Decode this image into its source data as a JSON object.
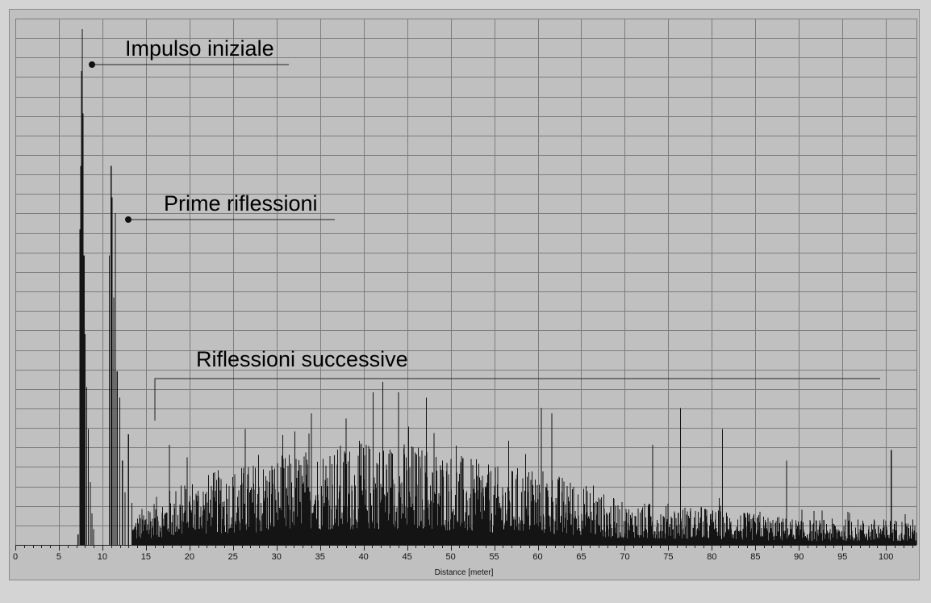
{
  "chart_data": {
    "type": "bar",
    "title": "",
    "xlabel": "Distance [meter]",
    "ylabel": "",
    "xlim": [
      0,
      103.5
    ],
    "ylim": [
      0,
      1
    ],
    "grid": true,
    "x_ticks": [
      0,
      5,
      10,
      15,
      20,
      25,
      30,
      35,
      40,
      45,
      50,
      55,
      60,
      65,
      70,
      75,
      80,
      85,
      90,
      95,
      100
    ],
    "annotations": [
      {
        "text": "Impulso iniziale",
        "x": 8.6
      },
      {
        "text": "Prime riflessioni",
        "x": 12.8
      },
      {
        "text": "Riflessioni successive",
        "x_start": 15.8,
        "x_end": 99.3
      }
    ],
    "peaks": [
      {
        "x": 7.2,
        "y": 0.02
      },
      {
        "x": 7.4,
        "y": 0.6
      },
      {
        "x": 7.5,
        "y": 0.72
      },
      {
        "x": 7.6,
        "y": 0.9
      },
      {
        "x": 7.7,
        "y": 0.98
      },
      {
        "x": 7.8,
        "y": 0.82
      },
      {
        "x": 7.9,
        "y": 0.55
      },
      {
        "x": 8.0,
        "y": 0.4
      },
      {
        "x": 8.2,
        "y": 0.3
      },
      {
        "x": 8.4,
        "y": 0.22
      },
      {
        "x": 8.6,
        "y": 0.12
      },
      {
        "x": 8.8,
        "y": 0.06
      },
      {
        "x": 9.0,
        "y": 0.03
      },
      {
        "x": 10.8,
        "y": 0.55
      },
      {
        "x": 11.0,
        "y": 0.72
      },
      {
        "x": 11.1,
        "y": 0.66
      },
      {
        "x": 11.3,
        "y": 0.47
      },
      {
        "x": 11.5,
        "y": 0.63
      },
      {
        "x": 11.7,
        "y": 0.33
      },
      {
        "x": 12.0,
        "y": 0.28
      },
      {
        "x": 12.3,
        "y": 0.16
      },
      {
        "x": 12.6,
        "y": 0.1
      },
      {
        "x": 13.0,
        "y": 0.21
      },
      {
        "x": 13.4,
        "y": 0.08
      },
      {
        "x": 17.7,
        "y": 0.19
      },
      {
        "x": 26.4,
        "y": 0.22
      },
      {
        "x": 34.0,
        "y": 0.25
      },
      {
        "x": 38.0,
        "y": 0.24
      },
      {
        "x": 41.1,
        "y": 0.29
      },
      {
        "x": 42.2,
        "y": 0.31
      },
      {
        "x": 44.0,
        "y": 0.29
      },
      {
        "x": 47.2,
        "y": 0.28
      },
      {
        "x": 60.4,
        "y": 0.26
      },
      {
        "x": 61.6,
        "y": 0.25
      },
      {
        "x": 76.4,
        "y": 0.26
      },
      {
        "x": 81.2,
        "y": 0.22
      },
      {
        "x": 73.2,
        "y": 0.19
      },
      {
        "x": 88.6,
        "y": 0.16
      },
      {
        "x": 100.6,
        "y": 0.18
      }
    ],
    "envelope": [
      {
        "x": 13.5,
        "y": 0.05
      },
      {
        "x": 15,
        "y": 0.08
      },
      {
        "x": 20,
        "y": 0.13
      },
      {
        "x": 25,
        "y": 0.15
      },
      {
        "x": 30,
        "y": 0.17
      },
      {
        "x": 35,
        "y": 0.19
      },
      {
        "x": 40,
        "y": 0.2
      },
      {
        "x": 45,
        "y": 0.2
      },
      {
        "x": 50,
        "y": 0.18
      },
      {
        "x": 55,
        "y": 0.15
      },
      {
        "x": 60,
        "y": 0.15
      },
      {
        "x": 65,
        "y": 0.12
      },
      {
        "x": 70,
        "y": 0.08
      },
      {
        "x": 75,
        "y": 0.08
      },
      {
        "x": 80,
        "y": 0.07
      },
      {
        "x": 85,
        "y": 0.06
      },
      {
        "x": 90,
        "y": 0.05
      },
      {
        "x": 95,
        "y": 0.05
      },
      {
        "x": 100,
        "y": 0.05
      },
      {
        "x": 103.5,
        "y": 0.05
      }
    ],
    "colors": {
      "background": "#c0c0c0",
      "grid": "#7c7c7c",
      "bars": "#141414"
    }
  }
}
